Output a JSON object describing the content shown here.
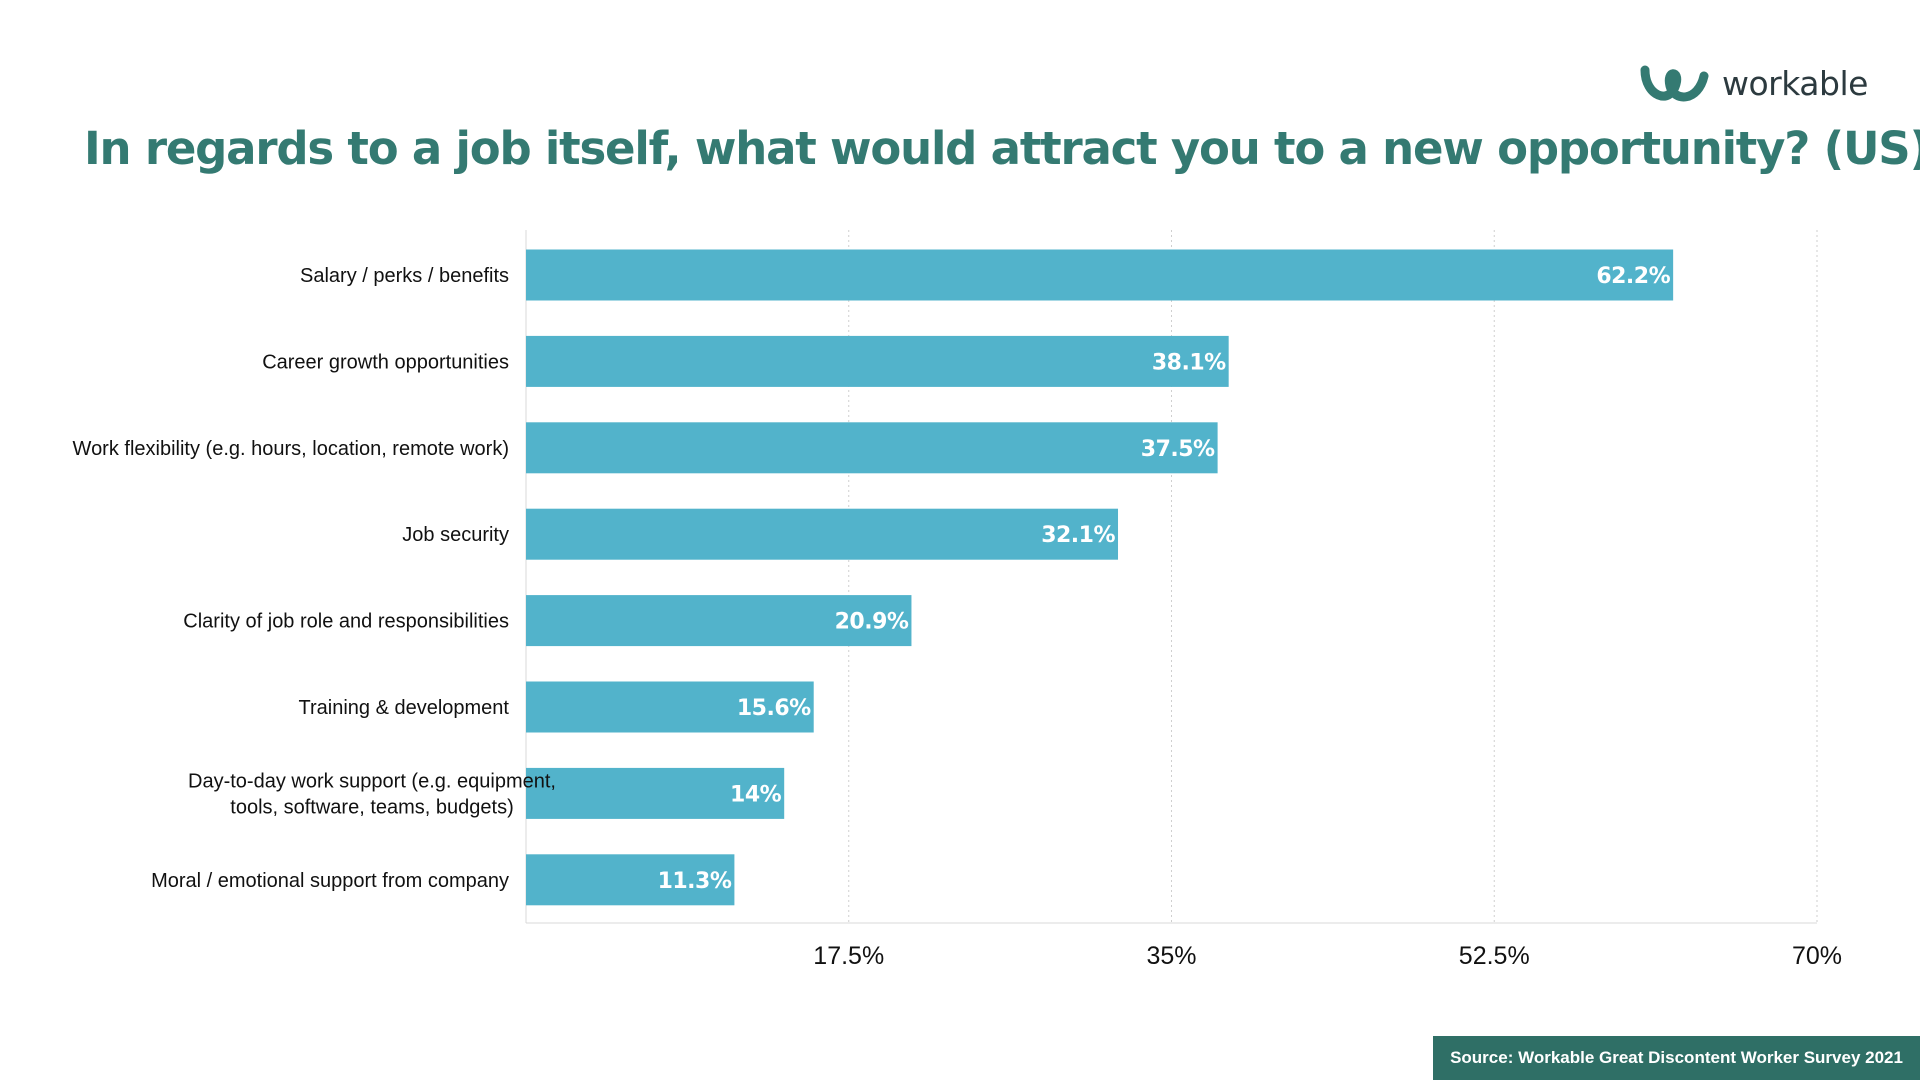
{
  "header": {
    "title": "In regards to a job itself, what would attract you to a new opportunity? (US)",
    "logo_text": "workable"
  },
  "footer": {
    "source": "Source: Workable Great Discontent Worker Survey 2021"
  },
  "colors": {
    "bar": "#52b3cb",
    "title": "#347a72",
    "source_bg": "#2f6f66",
    "logo_mark": "#347a72"
  },
  "chart_data": {
    "type": "bar",
    "orientation": "horizontal",
    "categories": [
      [
        "Salary / perks / benefits"
      ],
      [
        "Career growth opportunities"
      ],
      [
        "Work flexibility (e.g. hours, location, remote work)"
      ],
      [
        "Job security"
      ],
      [
        "Clarity of job role and responsibilities"
      ],
      [
        "Training & development"
      ],
      [
        "Day-to-day work support (e.g. equipment,",
        "tools, software, teams, budgets)"
      ],
      [
        "Moral / emotional support from company"
      ]
    ],
    "values": [
      62.2,
      38.1,
      37.5,
      32.1,
      20.9,
      15.6,
      14,
      11.3
    ],
    "value_labels": [
      "62.2%",
      "38.1%",
      "37.5%",
      "32.1%",
      "20.9%",
      "15.6%",
      "14%",
      "11.3%"
    ],
    "xlim": [
      0,
      70
    ],
    "xticks": [
      17.5,
      35,
      52.5,
      70
    ],
    "xtick_labels": [
      "17.5%",
      "35%",
      "52.5%",
      "70%"
    ],
    "grid": true
  }
}
